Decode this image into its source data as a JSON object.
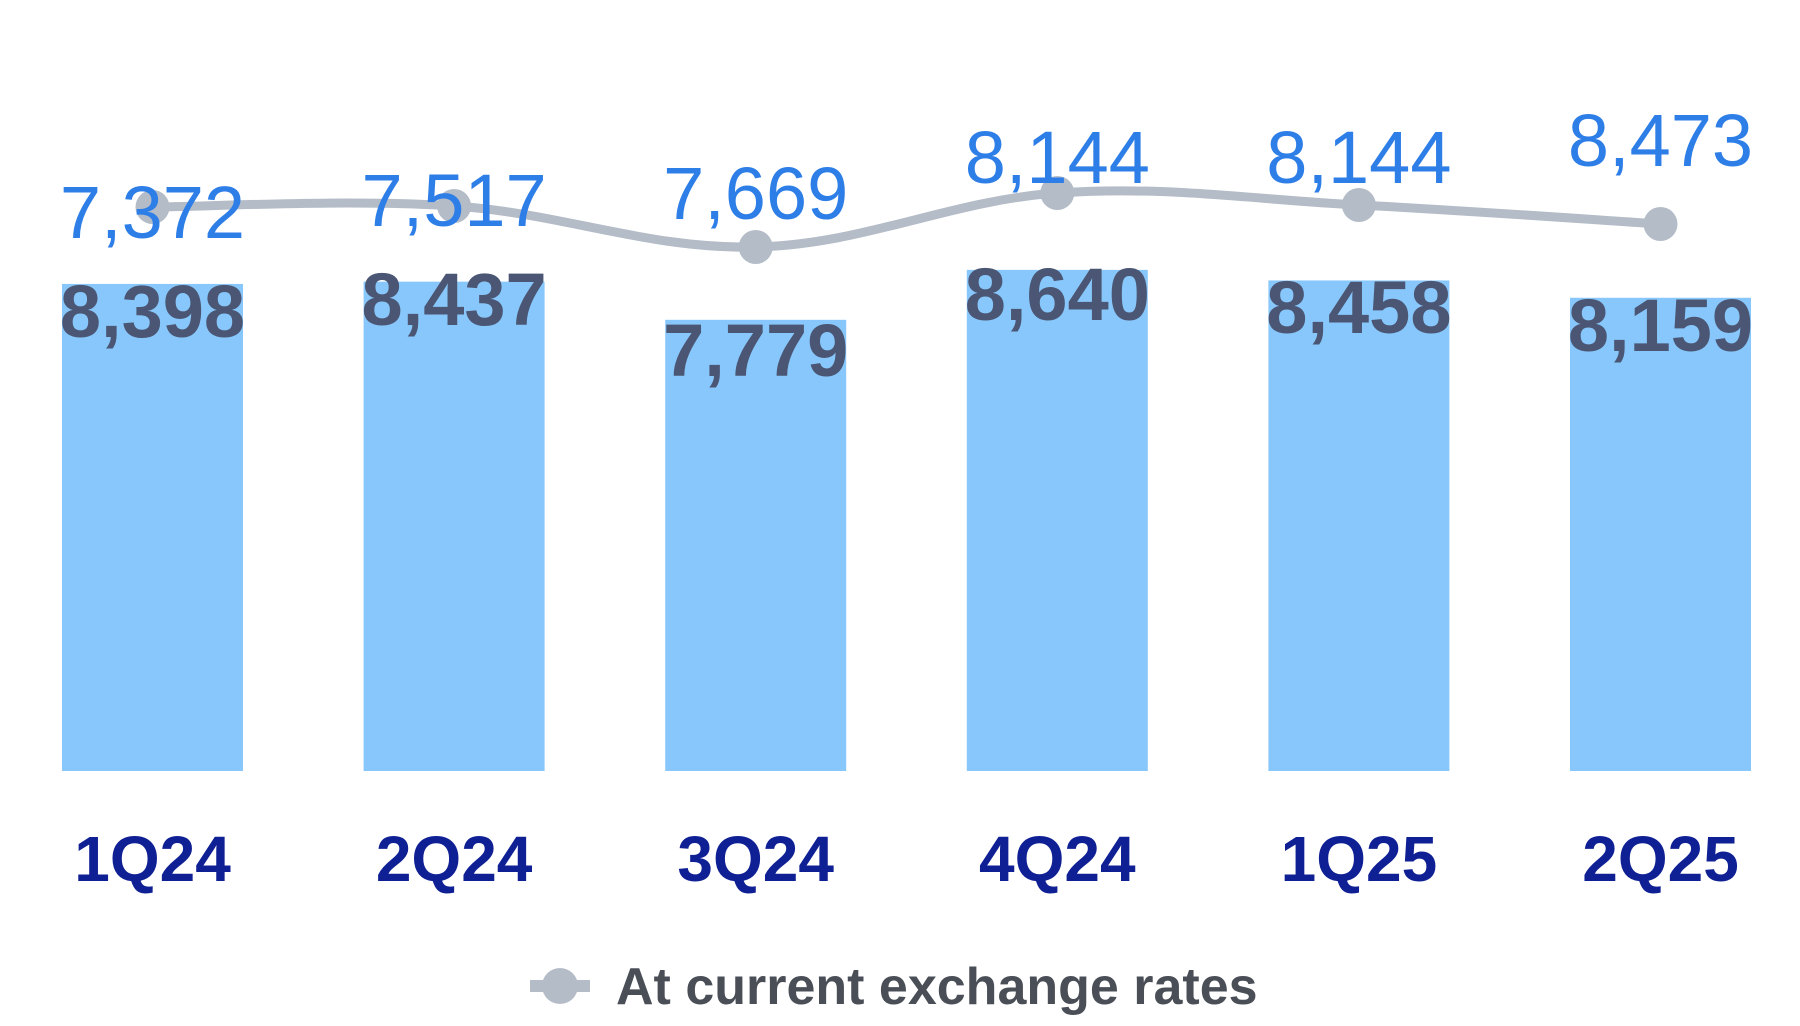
{
  "colors": {
    "bar": "#88c7fb",
    "bar_label": "#4a5673",
    "line": "#b4bcc7",
    "line_label": "#2e7ee8",
    "category": "#0f1f94",
    "legend_text": "#4a4f57"
  },
  "chart_data": {
    "type": "bar",
    "categories": [
      "1Q24",
      "2Q24",
      "3Q24",
      "4Q24",
      "1Q25",
      "2Q25"
    ],
    "series": [
      {
        "type": "bar",
        "values": [
          8398,
          8437,
          7779,
          8640,
          8458,
          8159
        ],
        "labels": [
          "8,398",
          "8,437",
          "7,779",
          "8,640",
          "8,458",
          "8,159"
        ]
      },
      {
        "type": "line",
        "name": "At current exchange rates",
        "values": [
          7372,
          7517,
          7669,
          8144,
          8144,
          8473
        ],
        "labels": [
          "7,372",
          "7,517",
          "7,669",
          "8,144",
          "8,144",
          "8,473"
        ]
      }
    ],
    "legend": "bottom-center",
    "grid": false
  }
}
